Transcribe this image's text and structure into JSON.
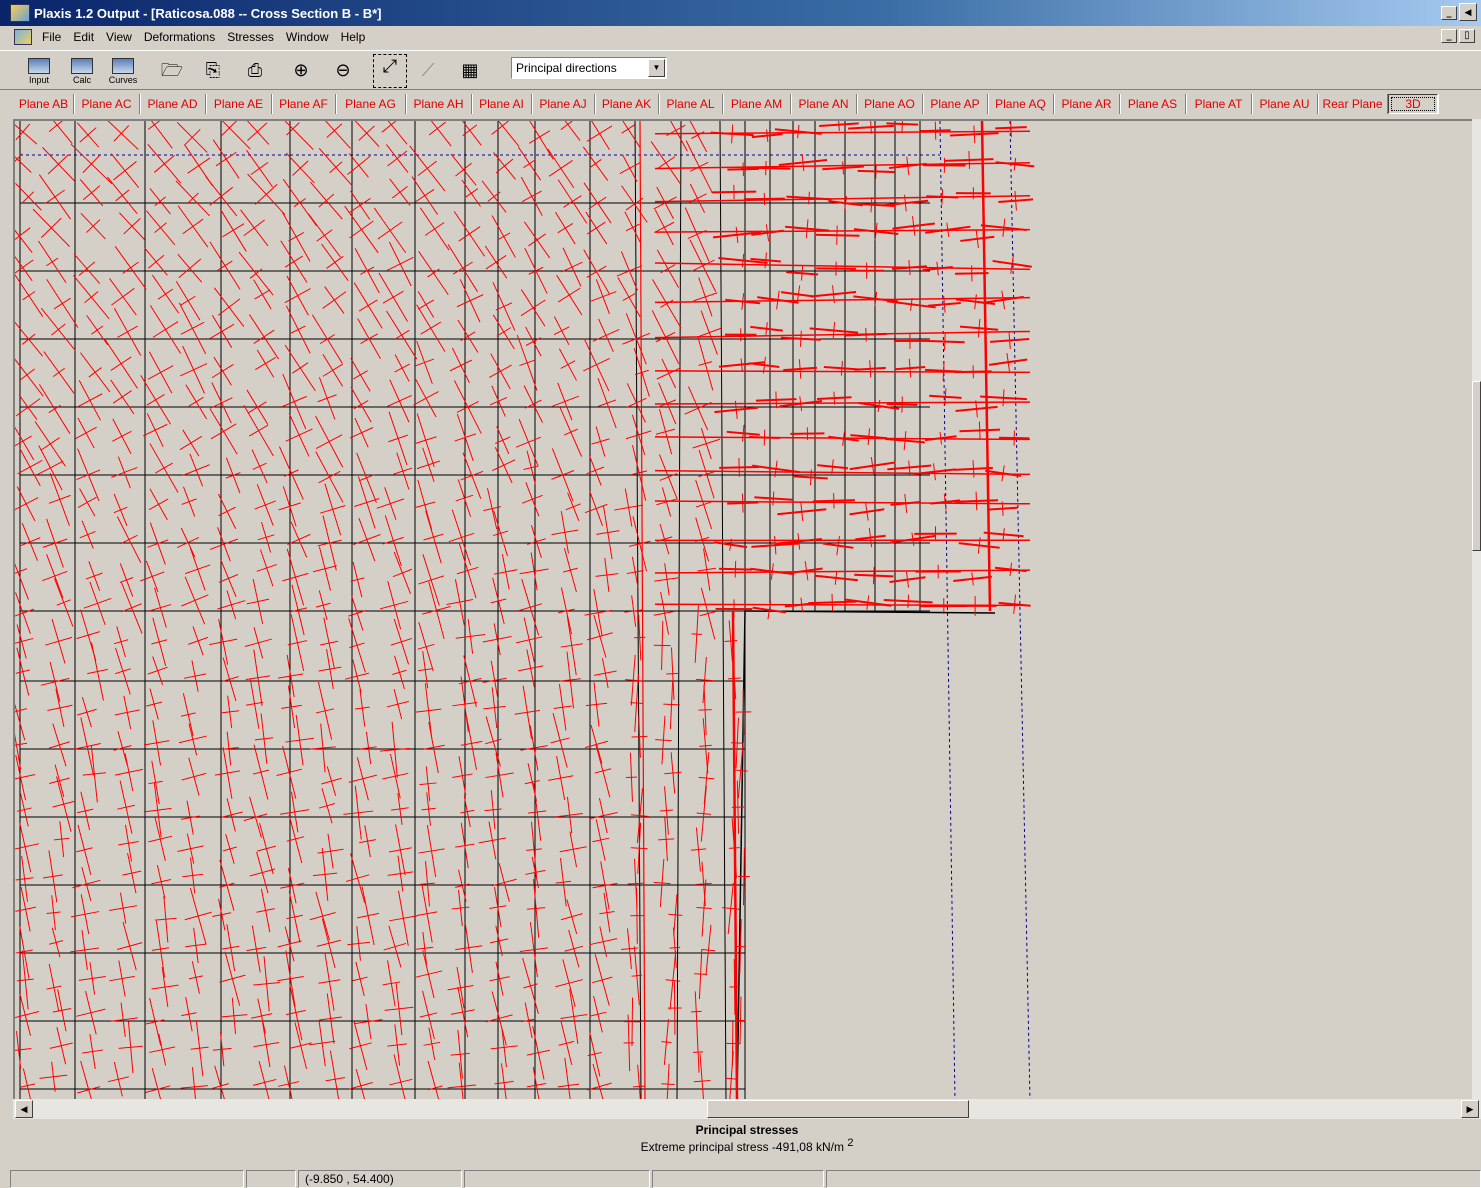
{
  "window": {
    "title": "Plaxis 1.2 Output - [Raticosa.088  --  Cross Section B - B*]",
    "minimize_glyph": "_",
    "restore_glyph": "▯",
    "close_glyph": "×"
  },
  "menu": [
    "File",
    "Edit",
    "View",
    "Deformations",
    "Stresses",
    "Window",
    "Help"
  ],
  "toolbar": {
    "buttons": [
      {
        "label": "Input",
        "icon": "input-program-icon"
      },
      {
        "label": "Calc",
        "icon": "calc-program-icon"
      },
      {
        "label": "Curves",
        "icon": "curves-program-icon"
      }
    ],
    "icons": [
      "open-folder-icon",
      "copy-icon",
      "print-icon",
      "zoom-in-icon",
      "zoom-out-icon",
      "reset-view-icon",
      "annotation-icon",
      "table-icon"
    ],
    "view_select": "Principal directions"
  },
  "tabs": [
    "Plane AB",
    "Plane AC",
    "Plane AD",
    "Plane AE",
    "Plane AF",
    "Plane AG",
    "Plane AH",
    "Plane AI",
    "Plane AJ",
    "Plane AK",
    "Plane AL",
    "Plane AM",
    "Plane AN",
    "Plane AO",
    "Plane AP",
    "Plane AQ",
    "Plane AR",
    "Plane AS",
    "Plane AT",
    "Plane AU",
    "Rear Plane",
    "3D"
  ],
  "selected_tab": "3D",
  "scroll_left_glyph": "◀",
  "scroll_right_glyph": "▶",
  "caption": {
    "title": "Principal stresses",
    "extreme_text": "Extreme principal stress -491,08  kN/m",
    "extreme_sup": "2"
  },
  "status": {
    "coordinates": "(-9.850 , 54.400)"
  },
  "colors": {
    "stress_cross": "#ff0000",
    "mesh": "#000000",
    "dashed_boundary": "#0000aa",
    "tab_text": "#e00000"
  }
}
